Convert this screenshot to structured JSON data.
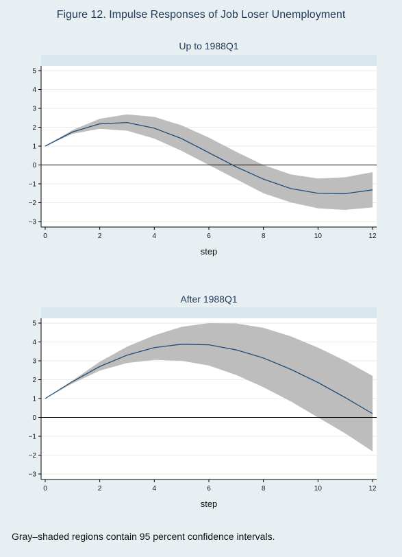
{
  "figure_title": "Figure 12.  Impulse Responses of Job Loser Unemployment",
  "caption": "Gray–shaded regions contain 95 percent confidence intervals.",
  "colors": {
    "background": "#e8eff2",
    "plot_bg": "#ffffff",
    "strip": "#d9e6ed",
    "band": "#bdbdbd",
    "line": "#1f4e79"
  },
  "chart_data": [
    {
      "type": "line",
      "title": "Up to 1988Q1",
      "xlabel": "step",
      "xlim": [
        0,
        12
      ],
      "ylim": [
        -3,
        5
      ],
      "xticks": [
        0,
        2,
        4,
        6,
        8,
        10,
        12
      ],
      "yticks": [
        -3,
        -2,
        -1,
        0,
        1,
        2,
        3,
        4,
        5
      ],
      "x": [
        0,
        1,
        2,
        3,
        4,
        5,
        6,
        7,
        8,
        9,
        10,
        11,
        12
      ],
      "series": [
        {
          "values": [
            1.0,
            1.75,
            2.18,
            2.25,
            1.95,
            1.4,
            0.65,
            -0.1,
            -0.75,
            -1.25,
            -1.5,
            -1.52,
            -1.32
          ]
        }
      ],
      "band_upper": [
        1.0,
        1.85,
        2.45,
        2.68,
        2.55,
        2.1,
        1.45,
        0.7,
        0.0,
        -0.5,
        -0.72,
        -0.65,
        -0.38
      ],
      "band_lower": [
        1.0,
        1.65,
        1.92,
        1.82,
        1.4,
        0.75,
        0.0,
        -0.75,
        -1.5,
        -1.98,
        -2.3,
        -2.38,
        -2.25
      ],
      "reference_line": 0
    },
    {
      "type": "line",
      "title": "After 1988Q1",
      "xlabel": "step",
      "xlim": [
        0,
        12
      ],
      "ylim": [
        -3,
        5
      ],
      "xticks": [
        0,
        2,
        4,
        6,
        8,
        10,
        12
      ],
      "yticks": [
        -3,
        -2,
        -1,
        0,
        1,
        2,
        3,
        4,
        5
      ],
      "x": [
        0,
        1,
        2,
        3,
        4,
        5,
        6,
        7,
        8,
        9,
        10,
        11,
        12
      ],
      "series": [
        {
          "values": [
            1.0,
            1.9,
            2.7,
            3.3,
            3.7,
            3.88,
            3.85,
            3.58,
            3.15,
            2.55,
            1.85,
            1.05,
            0.2
          ]
        }
      ],
      "band_upper": [
        1.0,
        1.95,
        2.95,
        3.75,
        4.35,
        4.8,
        5.0,
        4.98,
        4.75,
        4.3,
        3.7,
        3.0,
        2.2
      ],
      "band_lower": [
        1.0,
        1.8,
        2.48,
        2.88,
        3.05,
        3.0,
        2.75,
        2.25,
        1.6,
        0.85,
        0.0,
        -0.85,
        -1.8
      ],
      "reference_line": 0
    }
  ]
}
